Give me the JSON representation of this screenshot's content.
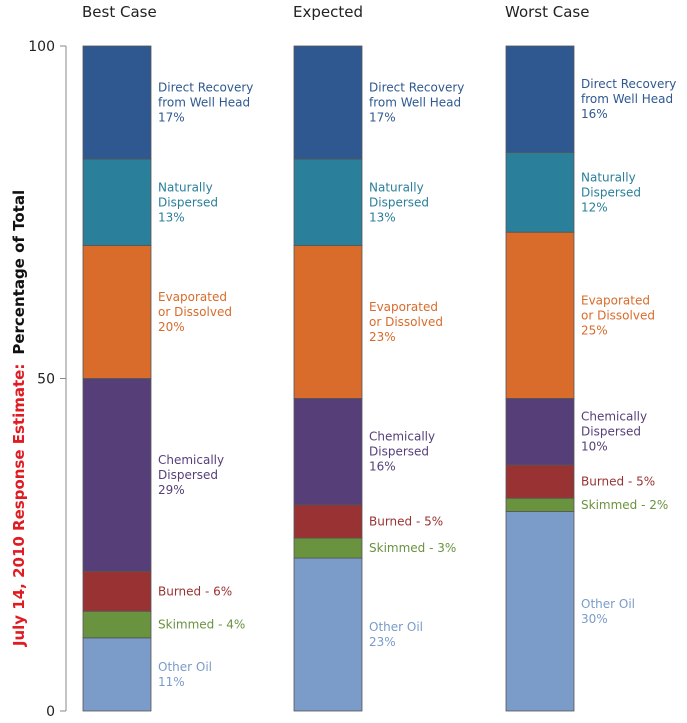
{
  "chart_data": {
    "type": "bar",
    "stacked": true,
    "ylabel_highlight": "July 14, 2010 Response Estimate:",
    "ylabel": "Percentage of Total",
    "ylim": [
      0,
      100
    ],
    "yticks": [
      "0",
      "50",
      "100"
    ],
    "categories": [
      "Best Case",
      "Expected",
      "Worst Case"
    ],
    "series": [
      {
        "name": "Other Oil",
        "color": "#7b9bc9",
        "values": [
          11,
          23,
          30
        ],
        "labels": [
          [
            "Other Oil",
            "11%"
          ],
          [
            "Other Oil",
            "23%"
          ],
          [
            "Other Oil",
            "30%"
          ]
        ]
      },
      {
        "name": "Skimmed",
        "color": "#6a9340",
        "values": [
          4,
          3,
          2
        ],
        "labels": [
          [
            "Skimmed - 4%"
          ],
          [
            "Skimmed - 3%"
          ],
          [
            "Skimmed - 2%"
          ]
        ]
      },
      {
        "name": "Burned",
        "color": "#993333",
        "values": [
          6,
          5,
          5
        ],
        "labels": [
          [
            "Burned - 6%"
          ],
          [
            "Burned - 5%"
          ],
          [
            "Burned - 5%"
          ]
        ]
      },
      {
        "name": "Chemically Dispersed",
        "color": "#563f79",
        "values": [
          29,
          16,
          10
        ],
        "labels": [
          [
            "Chemically",
            "Dispersed",
            "29%"
          ],
          [
            "Chemically",
            "Dispersed",
            "16%"
          ],
          [
            "Chemically",
            "Dispersed",
            "10%"
          ]
        ]
      },
      {
        "name": "Evaporated or Dissolved",
        "color": "#d96b2b",
        "values": [
          20,
          23,
          25
        ],
        "labels": [
          [
            "Evaporated",
            "or Dissolved",
            "20%"
          ],
          [
            "Evaporated",
            "or Dissolved",
            "23%"
          ],
          [
            "Evaporated",
            "or Dissolved",
            "25%"
          ]
        ]
      },
      {
        "name": "Naturally Dispersed",
        "color": "#2a7f9a",
        "values": [
          13,
          13,
          12
        ],
        "labels": [
          [
            "Naturally",
            "Dispersed",
            "13%"
          ],
          [
            "Naturally",
            "Dispersed",
            "13%"
          ],
          [
            "Naturally",
            "Dispersed",
            "12%"
          ]
        ]
      },
      {
        "name": "Direct Recovery from Well Head",
        "color": "#2f5891",
        "values": [
          17,
          17,
          16
        ],
        "labels": [
          [
            "Direct Recovery",
            "from Well Head",
            "17%"
          ],
          [
            "Direct Recovery",
            "from Well Head",
            "17%"
          ],
          [
            "Direct Recovery",
            "from Well Head",
            "16%"
          ]
        ]
      }
    ]
  }
}
